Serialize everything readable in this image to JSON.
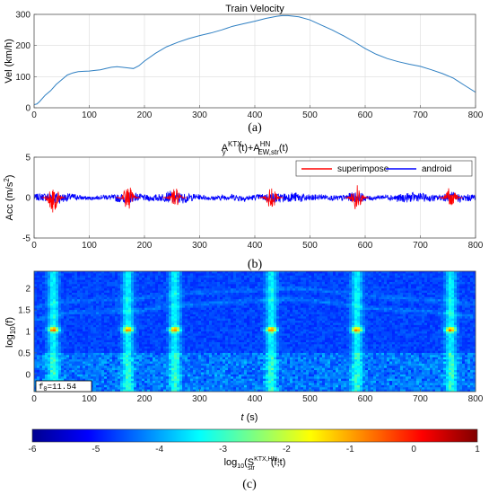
{
  "chart_data": [
    {
      "type": "line",
      "panel_label": "(a)",
      "title": "Train Velocity",
      "xlabel": "",
      "ylabel": "Vel (km/h)",
      "xlim": [
        0,
        800
      ],
      "ylim": [
        0,
        300
      ],
      "xticks": [
        0,
        100,
        200,
        300,
        400,
        500,
        600,
        700,
        800
      ],
      "yticks": [
        0,
        100,
        200,
        300
      ],
      "grid": true,
      "color": "#2e7fc2",
      "series": [
        {
          "x": [
            0,
            5,
            10,
            20,
            30,
            40,
            50,
            60,
            70,
            80,
            90,
            100,
            110,
            120,
            130,
            140,
            150,
            160,
            170,
            180,
            190,
            200,
            220,
            240,
            260,
            280,
            300,
            320,
            340,
            360,
            380,
            400,
            420,
            440,
            450,
            460,
            480,
            500,
            520,
            540,
            560,
            580,
            600,
            620,
            640,
            660,
            680,
            700,
            720,
            740,
            760,
            780,
            800
          ],
          "values": [
            10,
            12,
            20,
            40,
            55,
            75,
            90,
            105,
            112,
            116,
            117,
            118,
            120,
            122,
            126,
            130,
            132,
            130,
            128,
            126,
            135,
            150,
            175,
            196,
            210,
            222,
            232,
            240,
            250,
            262,
            270,
            278,
            287,
            294,
            296,
            296,
            292,
            282,
            266,
            250,
            232,
            212,
            190,
            172,
            158,
            148,
            140,
            133,
            122,
            110,
            95,
            72,
            50
          ]
        }
      ]
    },
    {
      "type": "line",
      "panel_label": "(b)",
      "title_main": "A",
      "title_sub1": "y",
      "title_sup1": "KTX",
      "title_mid": "(t)+A",
      "title_sub2": "EW,str",
      "title_sup2": "HN",
      "title_end": "(t)",
      "xlabel": "",
      "ylabel": "Acc (m/s",
      "ylabel_exp": "2",
      "ylabel_end": ")",
      "xlim": [
        0,
        800
      ],
      "ylim": [
        -5,
        5
      ],
      "xticks": [
        0,
        100,
        200,
        300,
        400,
        500,
        600,
        700,
        800
      ],
      "yticks": [
        -5,
        0,
        5
      ],
      "grid": true,
      "legend": "top-right",
      "series": [
        {
          "name": "superimpose",
          "color": "#ff0000",
          "bursts": [
            {
              "x": 35,
              "amp": 2.0
            },
            {
              "x": 170,
              "amp": 1.6
            },
            {
              "x": 255,
              "amp": 1.3
            },
            {
              "x": 430,
              "amp": 1.5
            },
            {
              "x": 585,
              "amp": 1.7
            },
            {
              "x": 755,
              "amp": 1.4
            }
          ]
        },
        {
          "name": "android",
          "color": "#0000ff",
          "baseline_amp": 0.55
        }
      ]
    },
    {
      "type": "heatmap",
      "panel_label": "(c)",
      "xlabel": "t",
      "xlabel_unit": "(s)",
      "ylabel_pre": "log",
      "ylabel_sub": "10",
      "ylabel_post": "(f)",
      "xlim": [
        0,
        800
      ],
      "ylim": [
        -0.4,
        2.4
      ],
      "xticks": [
        0,
        100,
        200,
        300,
        400,
        500,
        600,
        700,
        800
      ],
      "yticks": [
        0,
        0.5,
        1,
        1.5,
        2
      ],
      "ytick_labels": [
        "0",
        "0.5",
        "1",
        "1.5",
        "2"
      ],
      "annotation_pre": "f",
      "annotation_sub": "0",
      "annotation_post": "=11.54",
      "hotspots_x": [
        35,
        170,
        255,
        430,
        585,
        755
      ],
      "hotspot_logf": 1.04,
      "colorbar": {
        "ticks": [
          -6,
          -5,
          -4,
          -3,
          -2,
          -1,
          0,
          1
        ],
        "label_pre": "log",
        "label_sub": "10",
        "label_mid": "(S",
        "label_sub2": "str",
        "label_sup2": "KTX,HN",
        "label_sup2_sub": "1",
        "label_end": "(f,t)"
      }
    }
  ]
}
